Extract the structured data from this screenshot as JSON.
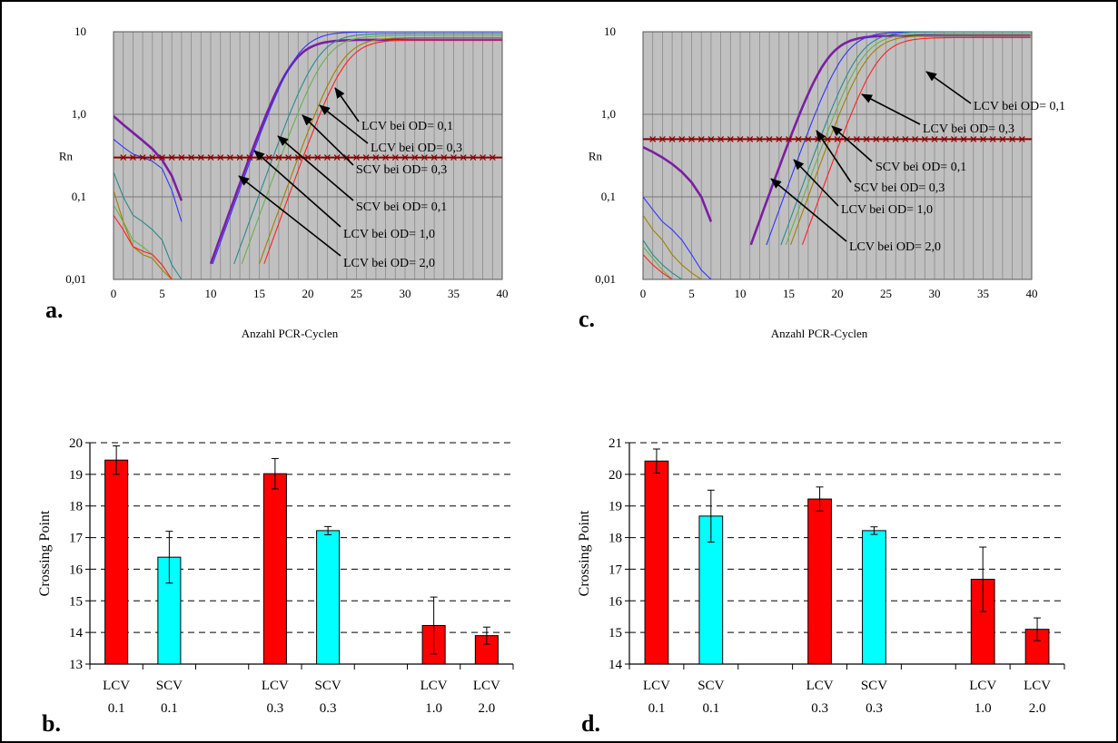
{
  "colors": {
    "plot_bg": "#c0c0c0",
    "grid": "#8a8a8a",
    "threshold": "#8b0000",
    "lcv_bar": "#ff0000",
    "scv_bar": "#00ffff",
    "curves": [
      "#7b1fa2",
      "#3333ff",
      "#2a8b8b",
      "#6ab04c",
      "#a08000",
      "#ff2020"
    ]
  },
  "chart_data": [
    {
      "panel": "a.",
      "type": "line",
      "xlabel": "Anzahl PCR-Cyclen",
      "ylabel": "Rn",
      "yscale": "log",
      "xlim": [
        0,
        40
      ],
      "ylim": [
        0.01,
        10
      ],
      "xticks": [
        "0",
        "5",
        "10",
        "15",
        "20",
        "25",
        "30",
        "35",
        "40"
      ],
      "yticks": [
        "0,01",
        "0,1",
        "1,0",
        "10"
      ],
      "threshold": 0.3,
      "annotations": [
        "LCV bei OD= 0,1",
        "LCV bei OD= 0,3",
        "SCV bei OD= 0,3",
        "SCV bei OD= 0,1",
        "LCV bei OD= 1,0",
        "LCV bei OD= 2,0"
      ],
      "series": [
        {
          "color": "#7b1fa2",
          "early": [
            [
              0,
              0.95
            ],
            [
              1,
              0.75
            ],
            [
              2,
              0.6
            ],
            [
              3,
              0.48
            ],
            [
              4,
              0.38
            ],
            [
              5,
              0.28
            ],
            [
              6,
              0.18
            ],
            [
              7,
              0.09
            ]
          ],
          "ct": 14.0,
          "plateau": 8.0
        },
        {
          "color": "#3333ff",
          "early": [
            [
              0,
              0.5
            ],
            [
              1,
              0.4
            ],
            [
              2,
              0.33
            ],
            [
              3,
              0.3
            ],
            [
              4,
              0.27
            ],
            [
              5,
              0.22
            ],
            [
              6,
              0.12
            ],
            [
              7,
              0.05
            ]
          ],
          "ct": 14.2,
          "plateau": 10.0
        },
        {
          "color": "#2a8b8b",
          "early": [
            [
              0,
              0.2
            ],
            [
              1,
              0.1
            ],
            [
              2,
              0.06
            ],
            [
              3,
              0.05
            ],
            [
              4,
              0.04
            ],
            [
              5,
              0.03
            ],
            [
              6,
              0.015
            ],
            [
              7,
              0.01
            ]
          ],
          "ct": 16.4,
          "plateau": 9.5
        },
        {
          "color": "#6ab04c",
          "early": [
            [
              0,
              0.08
            ],
            [
              1,
              0.05
            ],
            [
              2,
              0.03
            ],
            [
              3,
              0.025
            ],
            [
              4,
              0.02
            ],
            [
              5,
              0.015
            ],
            [
              6,
              0.01
            ]
          ],
          "ct": 17.2,
          "plateau": 9.0
        },
        {
          "color": "#a08000",
          "early": [
            [
              0,
              0.12
            ],
            [
              1,
              0.05
            ],
            [
              2,
              0.025
            ],
            [
              3,
              0.02
            ],
            [
              4,
              0.018
            ],
            [
              5,
              0.013
            ],
            [
              6,
              0.01
            ]
          ],
          "ct": 19.0,
          "plateau": 8.5
        },
        {
          "color": "#ff2020",
          "early": [
            [
              0,
              0.06
            ],
            [
              1,
              0.04
            ],
            [
              2,
              0.025
            ],
            [
              3,
              0.022
            ],
            [
              4,
              0.02
            ],
            [
              5,
              0.015
            ],
            [
              6,
              0.01
            ]
          ],
          "ct": 19.5,
          "plateau": 8.0
        }
      ]
    },
    {
      "panel": "c.",
      "type": "line",
      "xlabel": "Anzahl PCR-Cyclen",
      "ylabel": "Rn",
      "yscale": "log",
      "xlim": [
        0,
        40
      ],
      "ylim": [
        0.01,
        10
      ],
      "xticks": [
        "0",
        "5",
        "10",
        "15",
        "20",
        "25",
        "30",
        "35",
        "40"
      ],
      "yticks": [
        "0,01",
        "0,1",
        "1,0",
        "10"
      ],
      "threshold": 0.5,
      "annotations": [
        "LCV bei OD= 0,1",
        "LCV bei OD= 0,3",
        "SCV bei OD= 0,1",
        "SCV bei OD= 0,3",
        "LCV bei OD= 1,0",
        "LCV bei OD= 2,0"
      ],
      "series": [
        {
          "color": "#7b1fa2",
          "early": [
            [
              0,
              0.4
            ],
            [
              1,
              0.35
            ],
            [
              2,
              0.3
            ],
            [
              3,
              0.25
            ],
            [
              4,
              0.2
            ],
            [
              5,
              0.15
            ],
            [
              6,
              0.1
            ],
            [
              7,
              0.05
            ]
          ],
          "ct": 15.1,
          "plateau": 9.0
        },
        {
          "color": "#3333ff",
          "early": [
            [
              0,
              0.1
            ],
            [
              1,
              0.07
            ],
            [
              2,
              0.05
            ],
            [
              3,
              0.04
            ],
            [
              4,
              0.03
            ],
            [
              5,
              0.02
            ],
            [
              6,
              0.013
            ],
            [
              7,
              0.01
            ]
          ],
          "ct": 16.7,
          "plateau": 10.0
        },
        {
          "color": "#2a8b8b",
          "early": [
            [
              0,
              0.03
            ],
            [
              1,
              0.02
            ],
            [
              2,
              0.015
            ],
            [
              3,
              0.012
            ],
            [
              4,
              0.01
            ]
          ],
          "ct": 18.2,
          "plateau": 10.0
        },
        {
          "color": "#6ab04c",
          "early": [
            [
              0,
              0.025
            ],
            [
              1,
              0.018
            ],
            [
              2,
              0.013
            ],
            [
              3,
              0.01
            ]
          ],
          "ct": 18.7,
          "plateau": 9.5
        },
        {
          "color": "#a08000",
          "early": [
            [
              0,
              0.06
            ],
            [
              1,
              0.04
            ],
            [
              2,
              0.03
            ],
            [
              3,
              0.02
            ],
            [
              4,
              0.015
            ],
            [
              5,
              0.012
            ],
            [
              6,
              0.01
            ]
          ],
          "ct": 19.2,
          "plateau": 9.0
        },
        {
          "color": "#ff2020",
          "early": [
            [
              0,
              0.02
            ],
            [
              1,
              0.015
            ],
            [
              2,
              0.012
            ],
            [
              3,
              0.01
            ]
          ],
          "ct": 20.4,
          "plateau": 8.5
        }
      ]
    },
    {
      "panel": "b.",
      "type": "bar",
      "ylabel": "Crossing Point",
      "ylim": [
        13,
        20
      ],
      "yticks": [
        "13",
        "14",
        "15",
        "16",
        "17",
        "18",
        "19",
        "20"
      ],
      "categories": [
        {
          "top": "LCV",
          "bottom": "0.1"
        },
        {
          "top": "SCV",
          "bottom": "0.1"
        },
        {
          "top": "",
          "bottom": ""
        },
        {
          "top": "LCV",
          "bottom": "0.3"
        },
        {
          "top": "SCV",
          "bottom": "0.3"
        },
        {
          "top": "",
          "bottom": ""
        },
        {
          "top": "LCV",
          "bottom": "1.0"
        },
        {
          "top": "LCV",
          "bottom": "2.0"
        }
      ],
      "values": [
        19.45,
        16.38,
        null,
        19.02,
        17.22,
        null,
        14.22,
        13.9
      ],
      "errors": [
        0.45,
        0.82,
        null,
        0.48,
        0.13,
        null,
        0.9,
        0.27
      ],
      "bar_types": [
        "LCV",
        "SCV",
        null,
        "LCV",
        "SCV",
        null,
        "LCV",
        "LCV"
      ]
    },
    {
      "panel": "d.",
      "type": "bar",
      "ylabel": "Crossing Point",
      "ylim": [
        14,
        21
      ],
      "yticks": [
        "14",
        "15",
        "16",
        "17",
        "18",
        "19",
        "20",
        "21"
      ],
      "categories": [
        {
          "top": "LCV",
          "bottom": "0.1"
        },
        {
          "top": "SCV",
          "bottom": "0.1"
        },
        {
          "top": "",
          "bottom": ""
        },
        {
          "top": "LCV",
          "bottom": "0.3"
        },
        {
          "top": "SCV",
          "bottom": "0.3"
        },
        {
          "top": "",
          "bottom": ""
        },
        {
          "top": "LCV",
          "bottom": "1.0"
        },
        {
          "top": "LCV",
          "bottom": "2.0"
        }
      ],
      "values": [
        20.42,
        18.68,
        null,
        19.22,
        18.22,
        null,
        16.68,
        15.1
      ],
      "errors": [
        0.38,
        0.82,
        null,
        0.38,
        0.12,
        null,
        1.02,
        0.36
      ],
      "bar_types": [
        "LCV",
        "SCV",
        null,
        "LCV",
        "SCV",
        null,
        "LCV",
        "LCV"
      ]
    }
  ]
}
